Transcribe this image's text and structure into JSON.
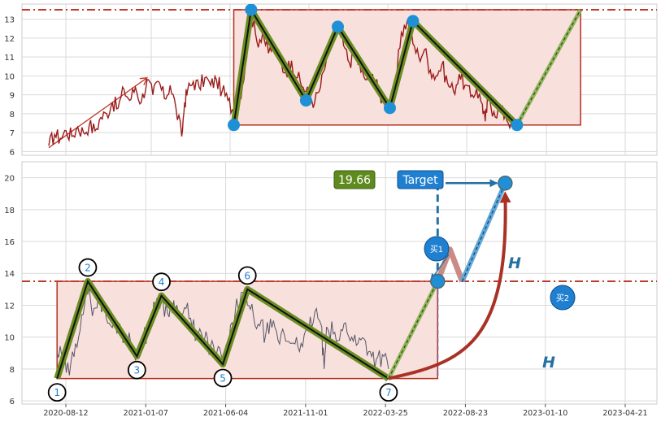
{
  "chart_data": [
    {
      "type": "line",
      "panel": "top",
      "ylim": [
        5.8,
        13.8
      ],
      "yticks": [
        "6",
        "7",
        "8",
        "9",
        "10",
        "11",
        "12",
        "13"
      ],
      "price_series": [
        [
          0.0,
          6.3
        ],
        [
          0.01,
          6.9
        ],
        [
          0.02,
          6.7
        ],
        [
          0.03,
          7.1
        ],
        [
          0.04,
          6.8
        ],
        [
          0.05,
          7.3
        ],
        [
          0.06,
          7.0
        ],
        [
          0.07,
          7.4
        ],
        [
          0.08,
          7.1
        ],
        [
          0.09,
          7.8
        ],
        [
          0.1,
          8.0
        ],
        [
          0.11,
          8.6
        ],
        [
          0.12,
          8.3
        ],
        [
          0.13,
          9.3
        ],
        [
          0.14,
          8.7
        ],
        [
          0.15,
          9.4
        ],
        [
          0.16,
          8.6
        ],
        [
          0.17,
          9.8
        ],
        [
          0.18,
          9.0
        ],
        [
          0.19,
          9.7
        ],
        [
          0.2,
          8.8
        ],
        [
          0.21,
          9.5
        ],
        [
          0.22,
          8.3
        ],
        [
          0.23,
          6.8
        ],
        [
          0.235,
          8.6
        ],
        [
          0.24,
          9.2
        ],
        [
          0.25,
          9.7
        ],
        [
          0.26,
          9.4
        ],
        [
          0.27,
          9.9
        ],
        [
          0.28,
          9.5
        ],
        [
          0.29,
          9.8
        ],
        [
          0.3,
          9.2
        ],
        [
          0.31,
          8.7
        ],
        [
          0.32,
          8.1
        ],
        [
          0.33,
          8.8
        ],
        [
          0.34,
          10.5
        ],
        [
          0.35,
          13.3
        ],
        [
          0.36,
          11.8
        ],
        [
          0.37,
          12.3
        ],
        [
          0.38,
          11.2
        ],
        [
          0.39,
          11.6
        ],
        [
          0.4,
          10.7
        ],
        [
          0.41,
          10.2
        ],
        [
          0.42,
          10.8
        ],
        [
          0.43,
          9.9
        ],
        [
          0.44,
          9.4
        ],
        [
          0.45,
          9.0
        ],
        [
          0.46,
          8.6
        ],
        [
          0.47,
          9.4
        ],
        [
          0.48,
          10.8
        ],
        [
          0.49,
          11.8
        ],
        [
          0.5,
          12.6
        ],
        [
          0.51,
          11.6
        ],
        [
          0.52,
          10.7
        ],
        [
          0.53,
          11.3
        ],
        [
          0.54,
          10.2
        ],
        [
          0.55,
          9.8
        ],
        [
          0.56,
          10.1
        ],
        [
          0.57,
          9.2
        ],
        [
          0.58,
          8.6
        ],
        [
          0.59,
          8.3
        ],
        [
          0.6,
          9.6
        ],
        [
          0.61,
          12.3
        ],
        [
          0.62,
          12.9
        ],
        [
          0.63,
          11.7
        ],
        [
          0.64,
          11.0
        ],
        [
          0.65,
          11.4
        ],
        [
          0.66,
          10.3
        ],
        [
          0.67,
          10.0
        ],
        [
          0.68,
          10.6
        ],
        [
          0.69,
          9.6
        ],
        [
          0.7,
          9.2
        ],
        [
          0.71,
          10.1
        ],
        [
          0.72,
          9.5
        ],
        [
          0.73,
          8.9
        ],
        [
          0.74,
          9.3
        ],
        [
          0.75,
          8.5
        ],
        [
          0.755,
          7.6
        ],
        [
          0.76,
          8.8
        ],
        [
          0.77,
          8.1
        ],
        [
          0.78,
          8.2
        ],
        [
          0.79,
          7.9
        ],
        [
          0.8,
          7.5
        ],
        [
          0.81,
          7.2
        ]
      ],
      "pattern_points": [
        [
          0.32,
          7.4
        ],
        [
          0.35,
          13.5
        ],
        [
          0.445,
          8.7
        ],
        [
          0.5,
          12.6
        ],
        [
          0.59,
          8.3
        ],
        [
          0.63,
          12.9
        ],
        [
          0.81,
          7.4
        ]
      ],
      "projection": [
        [
          0.81,
          7.4
        ],
        [
          0.92,
          13.5
        ]
      ],
      "trend_arrow": [
        [
          0.0,
          6.2
        ],
        [
          0.17,
          9.9
        ]
      ],
      "box": {
        "x0": 0.32,
        "x1": 0.92,
        "y0": 7.4,
        "y1": 13.5
      },
      "resistance": 13.5
    },
    {
      "type": "line",
      "panel": "bottom",
      "ylim": [
        5.8,
        21.0
      ],
      "yticks": [
        "6",
        "8",
        "10",
        "12",
        "14",
        "16",
        "18",
        "20"
      ],
      "xticks": [
        "2020-08-12",
        "2021-01-07",
        "2021-06-04",
        "2021-11-01",
        "2022-03-25",
        "2022-08-23",
        "2023-01-10",
        "2023-04-21"
      ],
      "series_name": "",
      "price_series": [
        [
          0.04,
          9.0
        ],
        [
          0.05,
          8.6
        ],
        [
          0.06,
          7.6
        ],
        [
          0.07,
          9.6
        ],
        [
          0.08,
          11.4
        ],
        [
          0.09,
          12.7
        ],
        [
          0.1,
          11.8
        ],
        [
          0.11,
          12.5
        ],
        [
          0.12,
          11.2
        ],
        [
          0.13,
          10.6
        ],
        [
          0.14,
          10.9
        ],
        [
          0.15,
          10.0
        ],
        [
          0.16,
          9.6
        ],
        [
          0.17,
          9.1
        ],
        [
          0.18,
          9.7
        ],
        [
          0.19,
          10.8
        ],
        [
          0.2,
          11.9
        ],
        [
          0.21,
          12.4
        ],
        [
          0.22,
          11.5
        ],
        [
          0.23,
          12.3
        ],
        [
          0.24,
          11.2
        ],
        [
          0.25,
          11.8
        ],
        [
          0.26,
          10.6
        ],
        [
          0.27,
          10.2
        ],
        [
          0.28,
          9.8
        ],
        [
          0.29,
          9.4
        ],
        [
          0.3,
          9.0
        ],
        [
          0.31,
          8.6
        ],
        [
          0.32,
          9.6
        ],
        [
          0.33,
          11.5
        ],
        [
          0.34,
          12.8
        ],
        [
          0.35,
          12.0
        ],
        [
          0.36,
          11.3
        ],
        [
          0.37,
          10.7
        ],
        [
          0.38,
          10.2
        ],
        [
          0.39,
          10.6
        ],
        [
          0.4,
          9.8
        ],
        [
          0.41,
          10.2
        ],
        [
          0.42,
          9.6
        ],
        [
          0.43,
          10.0
        ],
        [
          0.44,
          9.4
        ],
        [
          0.45,
          10.4
        ],
        [
          0.46,
          11.6
        ],
        [
          0.47,
          10.8
        ],
        [
          0.475,
          8.0
        ],
        [
          0.48,
          10.6
        ],
        [
          0.49,
          10.2
        ],
        [
          0.5,
          9.8
        ],
        [
          0.51,
          10.9
        ],
        [
          0.52,
          10.0
        ],
        [
          0.53,
          9.6
        ],
        [
          0.54,
          9.9
        ],
        [
          0.55,
          9.1
        ],
        [
          0.56,
          8.6
        ],
        [
          0.57,
          8.9
        ],
        [
          0.58,
          8.0
        ]
      ],
      "pattern_points": [
        [
          0.04,
          7.4
        ],
        [
          0.09,
          13.5
        ],
        [
          0.17,
          8.8
        ],
        [
          0.21,
          12.6
        ],
        [
          0.31,
          8.3
        ],
        [
          0.35,
          13.0
        ],
        [
          0.58,
          7.4
        ]
      ],
      "pattern_labels": [
        "1",
        "2",
        "3",
        "4",
        "5",
        "6",
        "7"
      ],
      "projection_to_breakout": [
        [
          0.58,
          7.4
        ],
        [
          0.66,
          13.5
        ]
      ],
      "pullback": [
        [
          0.66,
          13.5
        ],
        [
          0.68,
          15.5
        ],
        [
          0.7,
          13.5
        ]
      ],
      "projection_to_target": [
        [
          0.7,
          13.5
        ],
        [
          0.77,
          19.66
        ]
      ],
      "target_value": 19.66,
      "box": {
        "x0": 0.04,
        "x1": 0.66,
        "y0": 7.4,
        "y1": 13.5
      },
      "resistance": 13.5
    }
  ],
  "annotations": {
    "target_value_label": "19.66",
    "target_label": "Target",
    "buy1_label": "买1",
    "buy2_label": "买2",
    "height_label_upper": "H",
    "height_label_lower": "H"
  },
  "colors": {
    "price_top": "#9b1c1c",
    "price_bottom": "#555566",
    "pattern_fill": "#f8e0dc",
    "pattern_edge": "#b5301c",
    "pattern_line": "#6b8e23",
    "pattern_core": "#111111",
    "marker_blue": "#1f90d6",
    "dash_red": "#c0392b",
    "dash_blue": "#2471a3",
    "arrow_red": "#a93226",
    "target_box": "#1f7fd0",
    "value_box": "#5e8a1e"
  }
}
